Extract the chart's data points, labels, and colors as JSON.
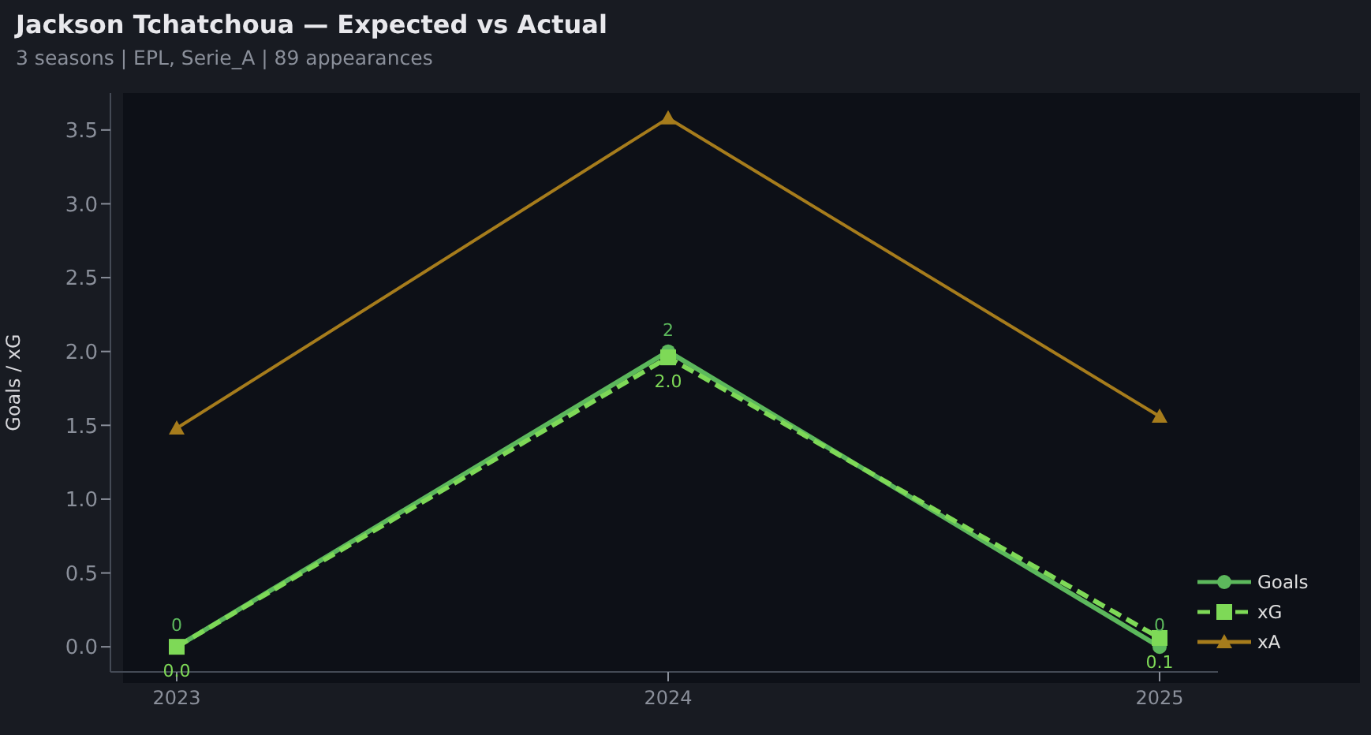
{
  "chart_data": {
    "type": "line",
    "title": "Jackson Tchatchoua — Expected vs Actual",
    "subtitle": "3 seasons | EPL, Serie_A | 89 appearances",
    "ylabel": "Goals / xG",
    "categories": [
      "2023",
      "2024",
      "2025"
    ],
    "series": [
      {
        "name": "Goals",
        "color": "#5cb85c",
        "values": [
          0,
          2,
          0
        ],
        "value_labels": [
          "0",
          "2",
          "0"
        ],
        "marker": "circle",
        "line_style": "solid"
      },
      {
        "name": "xG",
        "color": "#7ed957",
        "values": [
          0.0,
          1.96,
          0.06
        ],
        "value_labels": [
          "0.0",
          "2.0",
          "0.1"
        ],
        "marker": "square",
        "line_style": "dashed"
      },
      {
        "name": "xA",
        "color": "#a67c1c",
        "values": [
          1.48,
          3.58,
          1.56
        ],
        "marker": "triangle",
        "line_style": "solid"
      }
    ],
    "ylim": [
      -0.17,
      3.75
    ],
    "yticks": [
      {
        "value": 0,
        "label": "0.0"
      },
      0.5,
      {
        "value": 1,
        "label": "1.0"
      },
      1.5,
      {
        "value": 2,
        "label": "2.0"
      },
      2.5,
      {
        "value": 3,
        "label": "3.0"
      },
      3.5
    ],
    "grid": false,
    "legend": "bottom right"
  }
}
